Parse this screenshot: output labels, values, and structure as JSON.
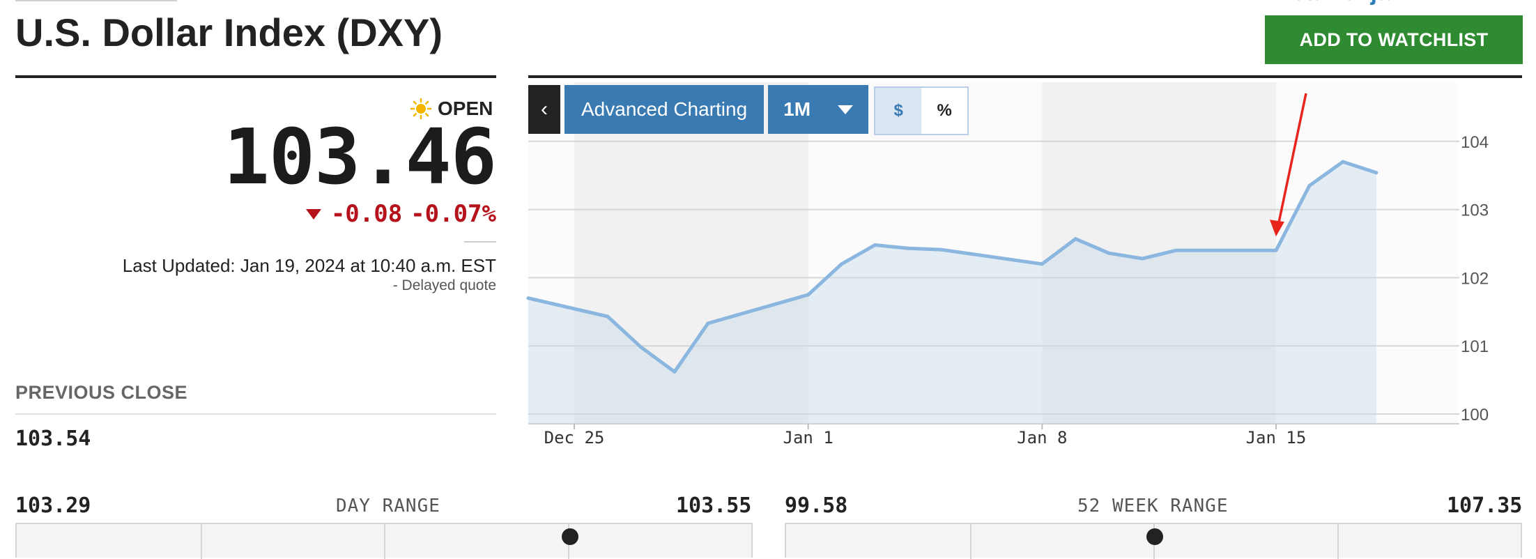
{
  "header": {
    "title": "U.S. Dollar Index (DXY)",
    "partial_top_text": "Jahrenjahr",
    "watchlist_label": "ADD TO WATCHLIST"
  },
  "quote": {
    "market_status": "OPEN",
    "price": "103.46",
    "change": "-0.08",
    "change_percent": "-0.07%",
    "last_updated": "Last Updated: Jan 19, 2024 at 10:40 a.m. EST",
    "delayed": "-  Delayed quote",
    "previous_close_label": "PREVIOUS CLOSE",
    "previous_close": "103.54"
  },
  "ranges": {
    "day": {
      "low": "103.29",
      "label": "DAY RANGE",
      "high": "103.55",
      "position": 0.75
    },
    "week52": {
      "low": "99.58",
      "label": "52 WEEK RANGE",
      "high": "107.35",
      "position": 0.5
    }
  },
  "chart_controls": {
    "back_glyph": "‹",
    "advanced_label": "Advanced Charting",
    "range_label": "1M",
    "unit_dollar": "$",
    "unit_percent": "%"
  },
  "colors": {
    "accent_green": "#2f8b32",
    "control_blue": "#3a7ab3",
    "negative_red": "#b5121b",
    "line_blue": "#8ab6df",
    "annotation_red": "#e8251d"
  },
  "chart_data": {
    "type": "area",
    "title": "",
    "xlabel": "",
    "ylabel": "",
    "x_ticks": [
      "Dec 25",
      "Jan 1",
      "Jan 8",
      "Jan 15"
    ],
    "y_ticks": [
      "104",
      "103",
      "102",
      "101",
      "100"
    ],
    "ylim": [
      100,
      104.15
    ],
    "grid": true,
    "shaded_bands": "alternating weeks",
    "series": [
      {
        "points": [
          {
            "x": "2023-12-22",
            "y": 101.7
          },
          {
            "x": "2023-12-26",
            "y": 101.43
          },
          {
            "x": "2023-12-27",
            "y": 100.98
          },
          {
            "x": "2023-12-28",
            "y": 100.62
          },
          {
            "x": "2023-12-29",
            "y": 101.33
          },
          {
            "x": "2024-01-01",
            "y": 101.75
          },
          {
            "x": "2024-01-02",
            "y": 102.2
          },
          {
            "x": "2024-01-03",
            "y": 102.48
          },
          {
            "x": "2024-01-04",
            "y": 102.43
          },
          {
            "x": "2024-01-05",
            "y": 102.41
          },
          {
            "x": "2024-01-08",
            "y": 102.2
          },
          {
            "x": "2024-01-09",
            "y": 102.57
          },
          {
            "x": "2024-01-10",
            "y": 102.36
          },
          {
            "x": "2024-01-11",
            "y": 102.28
          },
          {
            "x": "2024-01-12",
            "y": 102.4
          },
          {
            "x": "2024-01-15",
            "y": 102.4
          },
          {
            "x": "2024-01-16",
            "y": 103.35
          },
          {
            "x": "2024-01-17",
            "y": 103.7
          },
          {
            "x": "2024-01-18",
            "y": 103.54
          }
        ]
      }
    ],
    "annotation": {
      "type": "arrow",
      "points_to_x": "2024-01-15",
      "color": "#e8251d"
    }
  }
}
